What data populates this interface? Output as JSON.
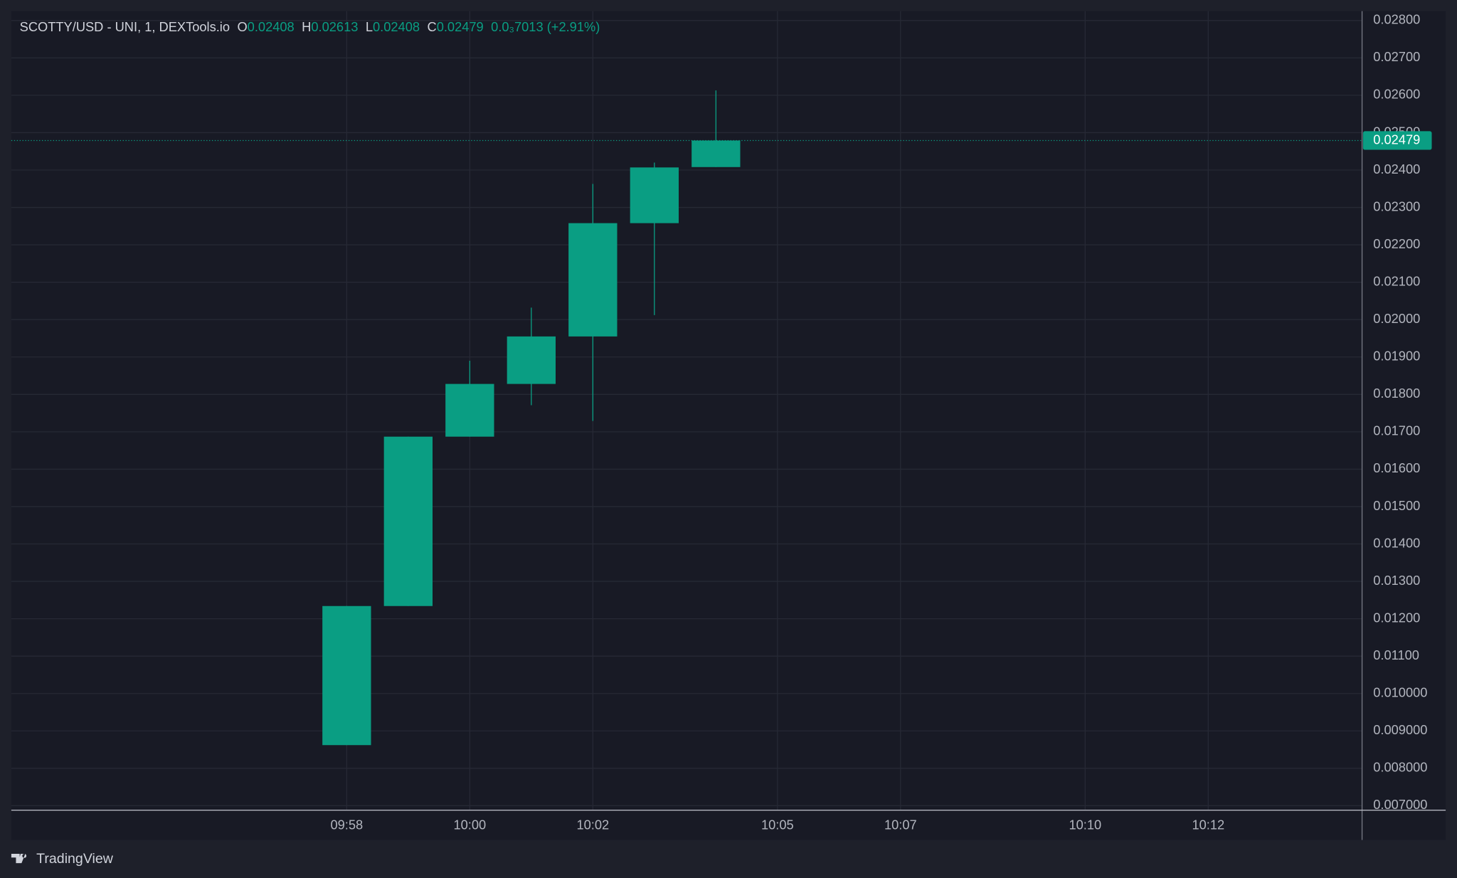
{
  "chart_data": {
    "type": "candlestick",
    "title": "SCOTTY/USD - UNI, 1, DEXTools.io",
    "ohlc_labels": [
      "O",
      "H",
      "L",
      "C"
    ],
    "change_label": "0.0₃7013 (+2.91%)",
    "x": [
      598,
      599,
      600,
      601,
      602,
      603,
      604
    ],
    "open": [
      0.00862,
      0.01234,
      0.01687,
      0.01828,
      0.01955,
      0.02258,
      0.02408
    ],
    "high": [
      0.01234,
      0.01687,
      0.0189,
      0.02032,
      0.02363,
      0.0242,
      0.02613
    ],
    "low": [
      0.00862,
      0.01234,
      0.01687,
      0.01771,
      0.01729,
      0.02012,
      0.02408
    ],
    "close": [
      0.01234,
      0.01687,
      0.01828,
      0.01955,
      0.02258,
      0.02407,
      0.02479
    ],
    "color": "#0a9e83",
    "xlim": [
      592.55,
      614.5
    ],
    "xticks": [
      {
        "value": 598,
        "label": "09:58"
      },
      {
        "value": 600,
        "label": "10:00"
      },
      {
        "value": 602,
        "label": "10:02"
      },
      {
        "value": 605,
        "label": "10:05"
      },
      {
        "value": 607,
        "label": "10:07"
      },
      {
        "value": 610,
        "label": "10:10"
      },
      {
        "value": 612,
        "label": "10:12"
      }
    ],
    "ylim": [
      0.00688,
      0.02825
    ],
    "yticks": [
      {
        "value": 0.007,
        "label": "0.007000"
      },
      {
        "value": 0.008,
        "label": "0.008000"
      },
      {
        "value": 0.009,
        "label": "0.009000"
      },
      {
        "value": 0.01,
        "label": "0.010000"
      },
      {
        "value": 0.011,
        "label": "0.01100"
      },
      {
        "value": 0.012,
        "label": "0.01200"
      },
      {
        "value": 0.013,
        "label": "0.01300"
      },
      {
        "value": 0.014,
        "label": "0.01400"
      },
      {
        "value": 0.015,
        "label": "0.01500"
      },
      {
        "value": 0.016,
        "label": "0.01600"
      },
      {
        "value": 0.017,
        "label": "0.01700"
      },
      {
        "value": 0.018,
        "label": "0.01800"
      },
      {
        "value": 0.019,
        "label": "0.01900"
      },
      {
        "value": 0.02,
        "label": "0.02000"
      },
      {
        "value": 0.021,
        "label": "0.02100"
      },
      {
        "value": 0.022,
        "label": "0.02200"
      },
      {
        "value": 0.023,
        "label": "0.02300"
      },
      {
        "value": 0.024,
        "label": "0.02400"
      },
      {
        "value": 0.025,
        "label": "0.02500"
      },
      {
        "value": 0.026,
        "label": "0.02600"
      },
      {
        "value": 0.027,
        "label": "0.02700"
      },
      {
        "value": 0.028,
        "label": "0.02800"
      }
    ],
    "grid": true
  },
  "footer": {
    "brand": "TradingView"
  }
}
